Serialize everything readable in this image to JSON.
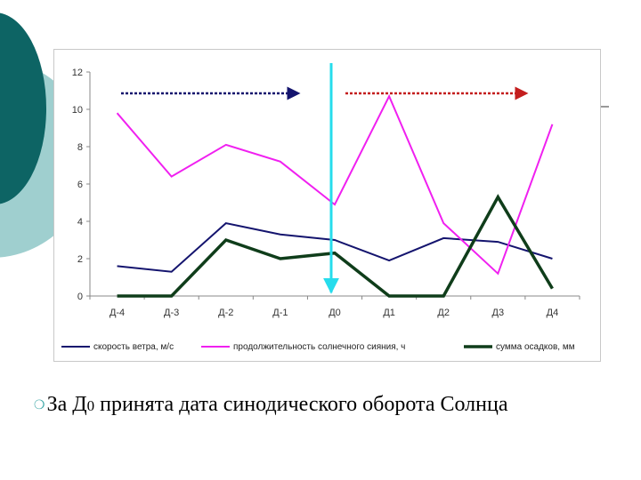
{
  "colors": {
    "wind": "#14146e",
    "sunshine": "#f020f0",
    "precip": "#0f3d1a",
    "marker_line": "#26dcec",
    "arrow_left": "#14146e",
    "arrow_right": "#c41e1e",
    "deco_dark": "#0d6464",
    "deco_light": "#9fcfcf"
  },
  "chart_data": {
    "type": "line",
    "categories": [
      "Д-4",
      "Д-3",
      "Д-2",
      "Д-1",
      "Д0",
      "Д1",
      "Д2",
      "Д3",
      "Д4"
    ],
    "ylim": [
      0,
      12
    ],
    "yticks": [
      "0",
      "2",
      "4",
      "6",
      "8",
      "10",
      "12"
    ],
    "ytick_values": [
      0,
      2,
      4,
      6,
      8,
      10,
      12
    ],
    "grid": false,
    "legend_position": "bottom",
    "marker_category": "Д0",
    "series": [
      {
        "name": "скорость ветра, м/с",
        "values": [
          1.6,
          1.3,
          3.9,
          3.3,
          3.0,
          1.9,
          3.1,
          2.9,
          2.0
        ]
      },
      {
        "name": "продолжительность солнечного сияния, ч",
        "values": [
          9.8,
          6.4,
          8.1,
          7.2,
          4.9,
          10.7,
          3.9,
          1.2,
          9.2
        ]
      },
      {
        "name": "сумма осадков, мм",
        "values": [
          0,
          0,
          3.0,
          2.0,
          2.3,
          0,
          0,
          5.3,
          0.4
        ]
      }
    ]
  },
  "caption": {
    "bullet": "❍",
    "text_before": "За Д",
    "subscript": "0",
    "text_after": " принята дата синодического оборота Солнца"
  }
}
